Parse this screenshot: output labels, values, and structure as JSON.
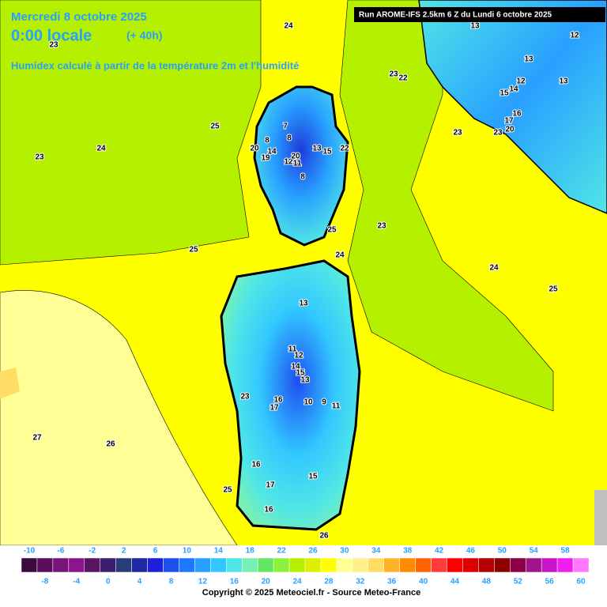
{
  "header": {
    "date": "Mercredi 8 octobre 2025",
    "time": "0:00 locale",
    "lead": "(+ 40h)",
    "description": "Humidex calculé à partir de la température 2m et l'humidité",
    "run": "Run AROME-IFS 2.5km 6 Z du Lundi 6 octobre 2025"
  },
  "contour_labels": [
    24,
    23,
    25,
    24,
    23,
    7,
    8,
    8,
    20,
    14,
    19,
    12,
    20,
    11,
    13,
    15,
    22,
    8,
    25,
    23,
    24,
    24,
    25,
    25,
    13,
    11,
    12,
    14,
    15,
    13,
    10,
    9,
    11,
    23,
    16,
    17,
    27,
    26,
    16,
    17,
    15,
    25,
    16,
    26,
    23,
    22,
    13,
    12,
    13,
    12,
    13,
    14,
    15,
    16,
    17,
    20,
    23,
    23
  ],
  "scale": {
    "values": [
      -10,
      -8,
      -6,
      -4,
      -2,
      0,
      2,
      4,
      6,
      8,
      10,
      12,
      14,
      16,
      18,
      20,
      22,
      24,
      26,
      28,
      30,
      32,
      34,
      36,
      38,
      40,
      42,
      44,
      46,
      48,
      50,
      52,
      54,
      56,
      58,
      60
    ],
    "colors": [
      "#3c0a3c",
      "#5a0f5a",
      "#781478",
      "#8c148c",
      "#5a1464",
      "#3c1e6e",
      "#283c78",
      "#1e28a0",
      "#1e1edc",
      "#1e50f0",
      "#1e78ff",
      "#28a0ff",
      "#32c8ff",
      "#50e6e6",
      "#78f0b4",
      "#64e664",
      "#8cf03c",
      "#b4f000",
      "#dcf000",
      "#ffff00",
      "#ffff96",
      "#fff08c",
      "#ffdc64",
      "#ffb428",
      "#ff8c00",
      "#ff6400",
      "#ff3c3c",
      "#ff0000",
      "#dc0000",
      "#b40000",
      "#8c0000",
      "#8c0046",
      "#a0148c",
      "#c814c8",
      "#f01ef0",
      "#ff78ff"
    ]
  },
  "footer": {
    "copyright": "Copyright © 2025 Meteociel.fr - Source Meteo-France"
  }
}
